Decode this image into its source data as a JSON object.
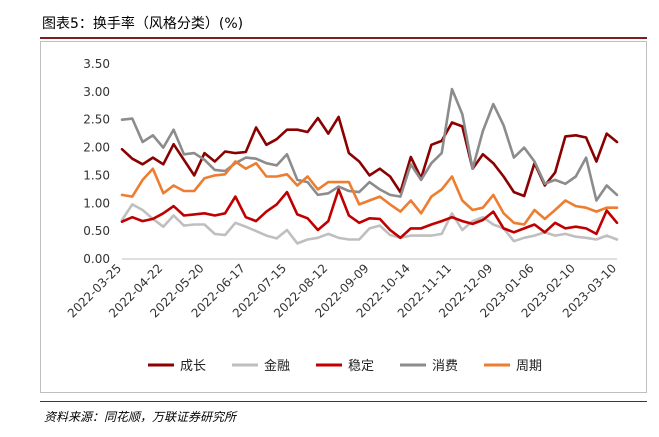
{
  "header": {
    "title": "图表5：换手率（风格分类）(%)"
  },
  "footer": {
    "source": "资料来源：同花顺，万联证券研究所"
  },
  "chart_data": {
    "type": "line",
    "title": "图表5：换手率（风格分类）(%)",
    "xlabel": "",
    "ylabel": "",
    "ylim": [
      0,
      3.5
    ],
    "yticks": [
      "0.00",
      "0.50",
      "1.00",
      "1.50",
      "2.00",
      "2.50",
      "3.00",
      "3.50"
    ],
    "xtick_labels": [
      "2022-03-25",
      "2022-04-22",
      "2022-05-20",
      "2022-06-17",
      "2022-07-15",
      "2022-08-12",
      "2022-09-09",
      "2022-10-14",
      "2022-11-11",
      "2022-12-09",
      "2023-01-06",
      "2023-02-10",
      "2023-03-10"
    ],
    "grid": false,
    "legend_position": "bottom",
    "series": [
      {
        "name": "成长",
        "color": "#8b0000",
        "values": [
          1.97,
          1.8,
          1.7,
          1.82,
          1.7,
          2.06,
          1.78,
          1.5,
          1.9,
          1.75,
          1.93,
          1.9,
          1.92,
          2.36,
          2.05,
          2.15,
          2.32,
          2.32,
          2.28,
          2.53,
          2.25,
          2.55,
          1.9,
          1.75,
          1.5,
          1.62,
          1.48,
          1.2,
          1.83,
          1.45,
          2.05,
          2.12,
          2.45,
          2.38,
          1.62,
          1.88,
          1.72,
          1.48,
          1.2,
          1.13,
          1.72,
          1.32,
          1.55,
          2.2,
          2.22,
          2.18,
          1.75,
          2.25,
          2.1
        ]
      },
      {
        "name": "金融",
        "color": "#bfbfbf",
        "values": [
          0.7,
          0.98,
          0.88,
          0.72,
          0.58,
          0.78,
          0.6,
          0.62,
          0.62,
          0.45,
          0.43,
          0.65,
          0.58,
          0.5,
          0.42,
          0.37,
          0.52,
          0.28,
          0.35,
          0.38,
          0.45,
          0.38,
          0.35,
          0.35,
          0.55,
          0.6,
          0.43,
          0.38,
          0.42,
          0.42,
          0.42,
          0.45,
          0.82,
          0.52,
          0.68,
          0.75,
          0.62,
          0.55,
          0.32,
          0.38,
          0.42,
          0.48,
          0.42,
          0.45,
          0.4,
          0.38,
          0.35,
          0.42,
          0.35
        ]
      },
      {
        "name": "稳定",
        "color": "#c00000",
        "values": [
          0.67,
          0.75,
          0.68,
          0.72,
          0.82,
          0.95,
          0.78,
          0.8,
          0.82,
          0.78,
          0.82,
          1.12,
          0.75,
          0.68,
          0.85,
          0.98,
          1.2,
          0.8,
          0.73,
          0.52,
          0.68,
          1.25,
          0.78,
          0.65,
          0.73,
          0.72,
          0.52,
          0.38,
          0.55,
          0.55,
          0.62,
          0.68,
          0.75,
          0.68,
          0.63,
          0.7,
          0.85,
          0.55,
          0.48,
          0.55,
          0.62,
          0.48,
          0.65,
          0.55,
          0.58,
          0.55,
          0.45,
          0.87,
          0.65
        ]
      },
      {
        "name": "消费",
        "color": "#8c8c8c",
        "values": [
          2.5,
          2.52,
          2.1,
          2.22,
          2.0,
          2.32,
          1.88,
          1.9,
          1.78,
          1.6,
          1.58,
          1.72,
          1.82,
          1.8,
          1.72,
          1.68,
          1.88,
          1.42,
          1.38,
          1.15,
          1.18,
          1.3,
          1.22,
          1.2,
          1.38,
          1.25,
          1.15,
          1.12,
          1.7,
          1.42,
          1.72,
          1.9,
          3.05,
          2.6,
          1.62,
          2.3,
          2.78,
          2.4,
          1.82,
          2.0,
          1.75,
          1.35,
          1.42,
          1.35,
          1.48,
          1.82,
          1.05,
          1.32,
          1.15
        ]
      },
      {
        "name": "周期",
        "color": "#ed7d31",
        "values": [
          1.15,
          1.12,
          1.42,
          1.62,
          1.18,
          1.32,
          1.22,
          1.22,
          1.45,
          1.5,
          1.52,
          1.75,
          1.62,
          1.72,
          1.48,
          1.48,
          1.52,
          1.32,
          1.48,
          1.25,
          1.38,
          1.38,
          1.38,
          0.98,
          1.05,
          1.12,
          0.98,
          0.85,
          1.05,
          0.82,
          1.12,
          1.25,
          1.48,
          1.05,
          0.88,
          0.92,
          1.15,
          0.82,
          0.65,
          0.62,
          0.88,
          0.72,
          0.88,
          1.05,
          0.95,
          0.92,
          0.85,
          0.92,
          0.92
        ]
      }
    ]
  }
}
